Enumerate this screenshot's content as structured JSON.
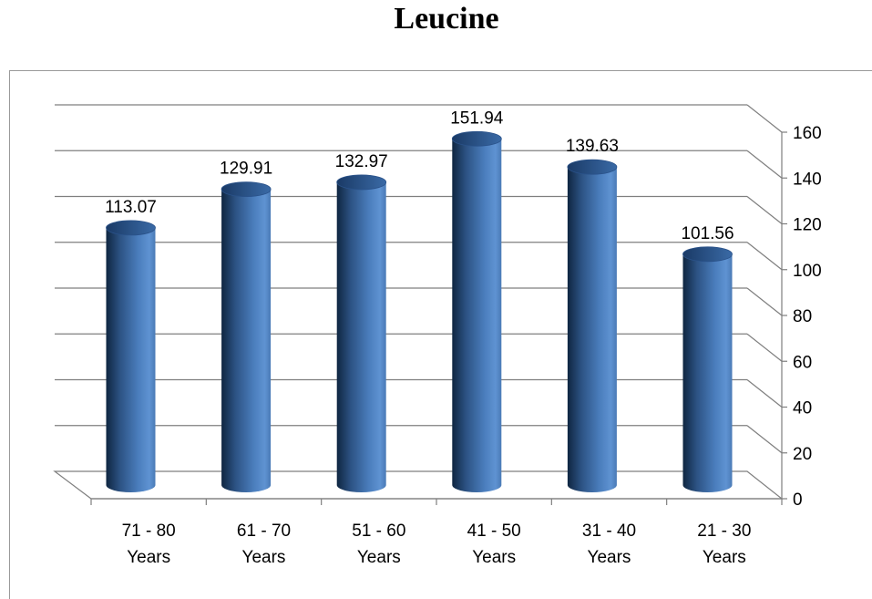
{
  "chart_data": {
    "type": "bar",
    "title": "Leucine",
    "categories": [
      [
        "71 - 80",
        "Years"
      ],
      [
        "61 - 70",
        "Years"
      ],
      [
        "51 - 60",
        "Years"
      ],
      [
        "41 - 50",
        "Years"
      ],
      [
        "31 - 40",
        "Years"
      ],
      [
        "21 - 30",
        "Years"
      ]
    ],
    "values": [
      113.07,
      129.91,
      132.97,
      151.94,
      139.63,
      101.56
    ],
    "value_labels": [
      "113.07",
      "129.91",
      "132.97",
      "151.94",
      "139.63",
      "101.56"
    ],
    "ylim": [
      0,
      160
    ],
    "yticks": [
      0,
      20,
      40,
      60,
      80,
      100,
      120,
      140,
      160
    ],
    "y_axis_side": "right",
    "grid": true,
    "style": "3d-cylinder",
    "bar_color": "#4f81bd",
    "bar_dark_color": "#16365c",
    "grid_color": "#7f7f7f"
  }
}
